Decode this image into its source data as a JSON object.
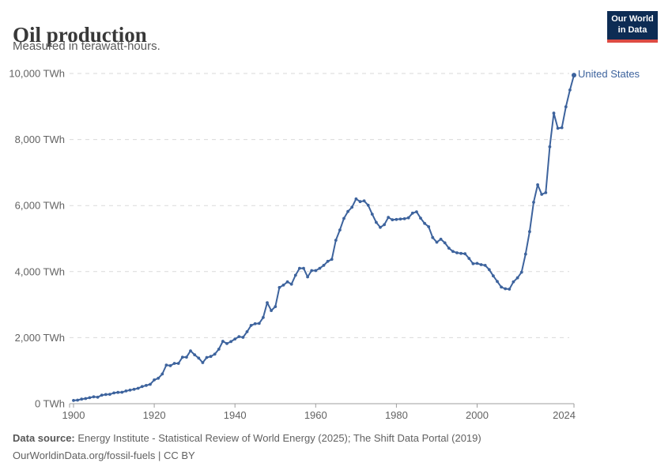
{
  "header": {
    "title": "Oil production",
    "subtitle": "Measured in terawatt-hours."
  },
  "logo": {
    "line1": "Our World",
    "line2": "in Data",
    "bg_color": "#0d2c54",
    "accent_color": "#dd4b43"
  },
  "entity_label": "United States",
  "footer": {
    "source_label": "Data source:",
    "source_text": " Energy Institute - Statistical Review of World Energy (2025); The Shift Data Portal (2019)",
    "license_text": "OurWorldinData.org/fossil-fuels | CC BY"
  },
  "chart_data": {
    "type": "line",
    "title": "Oil production",
    "subtitle": "Measured in terawatt-hours.",
    "xlim": [
      1900,
      2024
    ],
    "ylim": [
      0,
      10000
    ],
    "grid": "dashed horizontal gridlines",
    "legend_position": "line-end label right of last point",
    "x_ticks": [
      1900,
      1920,
      1940,
      1960,
      1980,
      2000,
      2024
    ],
    "y_ticks": [
      {
        "value": 0,
        "label": "0 TWh"
      },
      {
        "value": 2000,
        "label": "2,000 TWh"
      },
      {
        "value": 4000,
        "label": "4,000 TWh"
      },
      {
        "value": 6000,
        "label": "6,000 TWh"
      },
      {
        "value": 8000,
        "label": "8,000 TWh"
      },
      {
        "value": 10000,
        "label": "10,000 TWh"
      }
    ],
    "series": [
      {
        "name": "United States",
        "color": "#3d639d",
        "unit": "TWh",
        "years": [
          1900,
          1901,
          1902,
          1903,
          1904,
          1905,
          1906,
          1907,
          1908,
          1909,
          1910,
          1911,
          1912,
          1913,
          1914,
          1915,
          1916,
          1917,
          1918,
          1919,
          1920,
          1921,
          1922,
          1923,
          1924,
          1925,
          1926,
          1927,
          1928,
          1929,
          1930,
          1931,
          1932,
          1933,
          1934,
          1935,
          1936,
          1937,
          1938,
          1939,
          1940,
          1941,
          1942,
          1943,
          1944,
          1945,
          1946,
          1947,
          1948,
          1949,
          1950,
          1951,
          1952,
          1953,
          1954,
          1955,
          1956,
          1957,
          1958,
          1959,
          1960,
          1961,
          1962,
          1963,
          1964,
          1965,
          1966,
          1967,
          1968,
          1969,
          1970,
          1971,
          1972,
          1973,
          1974,
          1975,
          1976,
          1977,
          1978,
          1979,
          1980,
          1981,
          1982,
          1983,
          1984,
          1985,
          1986,
          1987,
          1988,
          1989,
          1990,
          1991,
          1992,
          1993,
          1994,
          1995,
          1996,
          1997,
          1998,
          1999,
          2000,
          2001,
          2002,
          2003,
          2004,
          2005,
          2006,
          2007,
          2008,
          2009,
          2010,
          2011,
          2012,
          2013,
          2014,
          2015,
          2016,
          2017,
          2018,
          2019,
          2020,
          2021,
          2022,
          2023,
          2024
        ],
        "values": [
          99,
          108,
          138,
          156,
          182,
          209,
          196,
          258,
          277,
          284,
          325,
          342,
          346,
          385,
          412,
          436,
          466,
          520,
          552,
          587,
          720,
          770,
          900,
          1170,
          1150,
          1220,
          1220,
          1410,
          1410,
          1600,
          1480,
          1380,
          1245,
          1400,
          1430,
          1500,
          1650,
          1890,
          1820,
          1880,
          1960,
          2030,
          2010,
          2180,
          2370,
          2420,
          2430,
          2610,
          3060,
          2820,
          2940,
          3520,
          3590,
          3690,
          3620,
          3890,
          4100,
          4100,
          3840,
          4030,
          4030,
          4100,
          4190,
          4310,
          4370,
          4950,
          5260,
          5610,
          5820,
          5950,
          6200,
          6120,
          6140,
          6010,
          5740,
          5490,
          5340,
          5420,
          5640,
          5570,
          5580,
          5590,
          5600,
          5630,
          5770,
          5810,
          5620,
          5460,
          5360,
          5030,
          4890,
          4980,
          4870,
          4710,
          4610,
          4570,
          4550,
          4540,
          4400,
          4240,
          4250,
          4210,
          4190,
          4060,
          3870,
          3700,
          3530,
          3480,
          3470,
          3690,
          3810,
          3980,
          4530,
          5210,
          6100,
          6630,
          6340,
          6390,
          7780,
          8800,
          8340,
          8360,
          8990,
          9500,
          9950
        ]
      }
    ]
  }
}
